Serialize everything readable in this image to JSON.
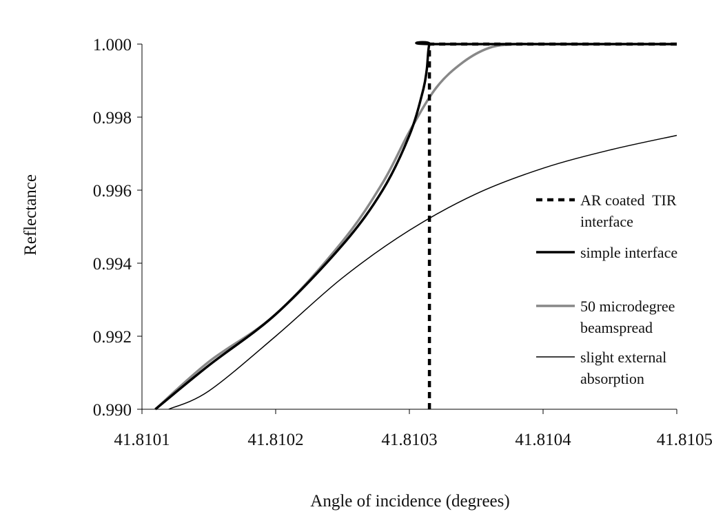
{
  "chart_data": {
    "type": "line",
    "title": "",
    "xlabel": "Angle of incidence (degrees)",
    "ylabel": "Reflectance",
    "xlim": [
      41.8101,
      41.8105
    ],
    "ylim": [
      0.99,
      1.0
    ],
    "x_ticks": [
      41.8101,
      41.8102,
      41.8103,
      41.8104,
      41.8105
    ],
    "x_tick_labels": [
      "41.8101",
      "41.8102",
      "41.8103",
      "41.8104",
      "41.8105"
    ],
    "y_ticks": [
      0.99,
      0.992,
      0.994,
      0.996,
      0.998,
      1.0
    ],
    "y_tick_labels": [
      "0.990",
      "0.992",
      "0.994",
      "0.996",
      "0.998",
      "1.000"
    ],
    "grid": false,
    "legend_position": "right",
    "series": [
      {
        "name": "AR coated TIR interface",
        "style": "dashed",
        "color": "#000000",
        "x": [
          41.810315,
          41.810315,
          41.8105
        ],
        "y": [
          0.99,
          1.0,
          1.0
        ]
      },
      {
        "name": "simple interface",
        "style": "solid-thick",
        "color": "#000000",
        "x": [
          41.81011,
          41.81015,
          41.8102,
          41.81025,
          41.81028,
          41.8103,
          41.81031,
          41.810313,
          41.810315,
          41.81032,
          41.8105
        ],
        "y": [
          0.99,
          0.9912,
          0.9926,
          0.9945,
          0.996,
          0.9975,
          0.9987,
          0.9993,
          1.0,
          1.0,
          1.0
        ]
      },
      {
        "name": "50 microdegree beamspread",
        "style": "solid-thick",
        "color": "#888888",
        "x": [
          41.81011,
          41.81015,
          41.8102,
          41.81025,
          41.81028,
          41.8103,
          41.81032,
          41.81034,
          41.81036,
          41.81038,
          41.8104,
          41.8105
        ],
        "y": [
          0.99,
          0.9913,
          0.9926,
          0.9946,
          0.9962,
          0.9976,
          0.9988,
          0.9995,
          0.9999,
          1.0,
          1.0,
          1.0
        ]
      },
      {
        "name": "slight external absorption",
        "style": "solid-thin",
        "color": "#000000",
        "x": [
          41.81012,
          41.81015,
          41.8102,
          41.81025,
          41.8103,
          41.81035,
          41.8104,
          41.81045,
          41.8105
        ],
        "y": [
          0.99,
          0.9905,
          0.992,
          0.9936,
          0.9949,
          0.9959,
          0.9966,
          0.9971,
          0.9975
        ]
      }
    ],
    "legend": [
      {
        "series": 0,
        "lines": [
          "AR coated  TIR",
          "interface"
        ]
      },
      {
        "series": 1,
        "lines": [
          "simple interface"
        ]
      },
      {
        "series": 2,
        "lines": [
          "50 microdegree",
          "beamspread"
        ]
      },
      {
        "series": 3,
        "lines": [
          "slight external",
          "absorption"
        ]
      }
    ]
  }
}
